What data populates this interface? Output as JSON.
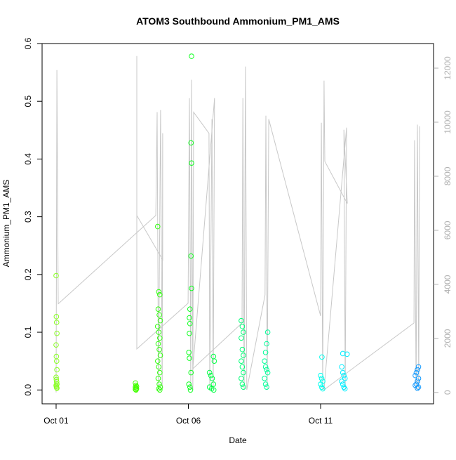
{
  "chart_data": {
    "type": "scatter",
    "title": "ATOM3 Southbound Ammonium_PM1_AMS",
    "xlabel": "Date",
    "ylabel": "Ammonium_PM1_AMS",
    "xlim": [
      0.47,
      15.27
    ],
    "xticks": [
      {
        "value": 1,
        "label": "Oct 01"
      },
      {
        "value": 6,
        "label": "Oct 06"
      },
      {
        "value": 11,
        "label": "Oct 11"
      }
    ],
    "ylim": [
      -0.024,
      0.6
    ],
    "yticks": [
      {
        "value": 0,
        "label": "0.0"
      },
      0.1,
      0.2,
      0.3,
      0.4,
      0.5,
      0.6
    ],
    "y2lim": [
      -420,
      12910
    ],
    "y2ticks": [
      0,
      2000,
      4000,
      6000,
      8000,
      10000,
      12000
    ],
    "series": [
      {
        "type": "line",
        "axis": "y2",
        "color": "#c8c8c8",
        "x": [
          1.0,
          1.03,
          1.08,
          4.77,
          4.82,
          4.87,
          4.95,
          5.01,
          5.03,
          5.03,
          4.05,
          4.05,
          4.05,
          5.99,
          6.04,
          6.09,
          6.12,
          6.17,
          6.2,
          6.78,
          6.81,
          6.89,
          6.94,
          6.99,
          6.17,
          8.03,
          8.06,
          8.11,
          8.16,
          8.21,
          8.9,
          8.93,
          8.98,
          9.04,
          11.0,
          11.03,
          11.08,
          11.13,
          11.16,
          12.01,
          11.88,
          11.93,
          11.98,
          11.13,
          14.53,
          14.55,
          14.61,
          14.66,
          14.71,
          14.74
        ],
        "values": [
          0,
          11930,
          3280,
          6550,
          10370,
          100,
          10450,
          100,
          9590,
          4910,
          6550,
          12450,
          1610,
          3300,
          10890,
          100,
          11570,
          100,
          10370,
          9590,
          100,
          10110,
          100,
          10890,
          880,
          2570,
          10890,
          100,
          12060,
          100,
          3610,
          10240,
          100,
          10110,
          2830,
          9980,
          100,
          11540,
          8550,
          6990,
          9720,
          100,
          9800,
          100,
          2570,
          9330,
          100,
          9910,
          100,
          9850
        ]
      },
      {
        "color": "#88ff22",
        "x": [
          1.0,
          1.01,
          1.02,
          1.03,
          1.0,
          1.01,
          1.02,
          1.03,
          1.0,
          1.01,
          1.02,
          1.03,
          1.0,
          1.01,
          1.02,
          1.03
        ],
        "values": [
          0.198,
          0.127,
          0.117,
          0.098,
          0.078,
          0.058,
          0.05,
          0.035,
          0.022,
          0.018,
          0.014,
          0.01,
          0.008,
          0.006,
          0.004,
          0.003
        ]
      },
      {
        "color": "#44ff00",
        "x": [
          4.0,
          4.02,
          4.04,
          4.0,
          4.02,
          4.04,
          4.0,
          4.02
        ],
        "values": [
          0.012,
          0.008,
          0.006,
          0.005,
          0.003,
          0.002,
          0.001,
          0.0
        ]
      },
      {
        "color": "#33ff11",
        "x": [
          4.84,
          4.88,
          4.92,
          4.86,
          4.9,
          4.94,
          4.84,
          4.88,
          4.92,
          4.86,
          4.9,
          4.94,
          4.84,
          4.88,
          4.92,
          4.86,
          4.9,
          4.94,
          4.88,
          4.92
        ],
        "values": [
          0.283,
          0.17,
          0.165,
          0.14,
          0.13,
          0.12,
          0.11,
          0.1,
          0.09,
          0.08,
          0.07,
          0.06,
          0.05,
          0.04,
          0.03,
          0.02,
          0.01,
          0.005,
          0.002,
          0.0
        ]
      },
      {
        "color": "#11ff22",
        "x": [
          6.12,
          6.1,
          6.12,
          6.1,
          6.12,
          6.06,
          6.04,
          6.06,
          6.04,
          6.02,
          6.04,
          6.1,
          6.02,
          6.06,
          6.08
        ],
        "values": [
          0.578,
          0.428,
          0.393,
          0.232,
          0.176,
          0.14,
          0.125,
          0.115,
          0.098,
          0.065,
          0.055,
          0.03,
          0.01,
          0.005,
          0.0
        ]
      },
      {
        "color": "#00ff44",
        "x": [
          6.95,
          6.98,
          6.8,
          6.85,
          6.9,
          6.95,
          6.8,
          6.88,
          6.96
        ],
        "values": [
          0.058,
          0.05,
          0.03,
          0.025,
          0.02,
          0.01,
          0.005,
          0.002,
          0.0
        ]
      },
      {
        "color": "#00ff77",
        "x": [
          8.0,
          8.04,
          8.08,
          8.0,
          8.04,
          8.08,
          8.0,
          8.04,
          8.08,
          8.0,
          8.04,
          8.08
        ],
        "values": [
          0.12,
          0.11,
          0.1,
          0.09,
          0.07,
          0.06,
          0.05,
          0.04,
          0.03,
          0.02,
          0.01,
          0.005
        ]
      },
      {
        "color": "#00ff99",
        "x": [
          9.0,
          8.96,
          8.92,
          8.88,
          8.92,
          8.96,
          9.0,
          8.88,
          8.92,
          8.96
        ],
        "values": [
          0.1,
          0.08,
          0.065,
          0.05,
          0.04,
          0.035,
          0.03,
          0.02,
          0.01,
          0.005
        ]
      },
      {
        "color": "#00ffee",
        "x": [
          11.05,
          11.0,
          11.04,
          11.08,
          11.0,
          11.04,
          11.08
        ],
        "values": [
          0.057,
          0.025,
          0.02,
          0.015,
          0.01,
          0.005,
          0.002
        ]
      },
      {
        "color": "#00eeff",
        "x": [
          11.84,
          12.0,
          11.8,
          11.84,
          11.88,
          11.92,
          11.8,
          11.84,
          11.88,
          11.92
        ],
        "values": [
          0.063,
          0.062,
          0.04,
          0.03,
          0.025,
          0.02,
          0.015,
          0.01,
          0.005,
          0.002
        ]
      },
      {
        "color": "#1199ff",
        "x": [
          14.7,
          14.66,
          14.62,
          14.58,
          14.7,
          14.66,
          14.62,
          14.58,
          14.7,
          14.66
        ],
        "values": [
          0.04,
          0.035,
          0.03,
          0.025,
          0.02,
          0.015,
          0.01,
          0.008,
          0.005,
          0.003
        ]
      }
    ]
  }
}
